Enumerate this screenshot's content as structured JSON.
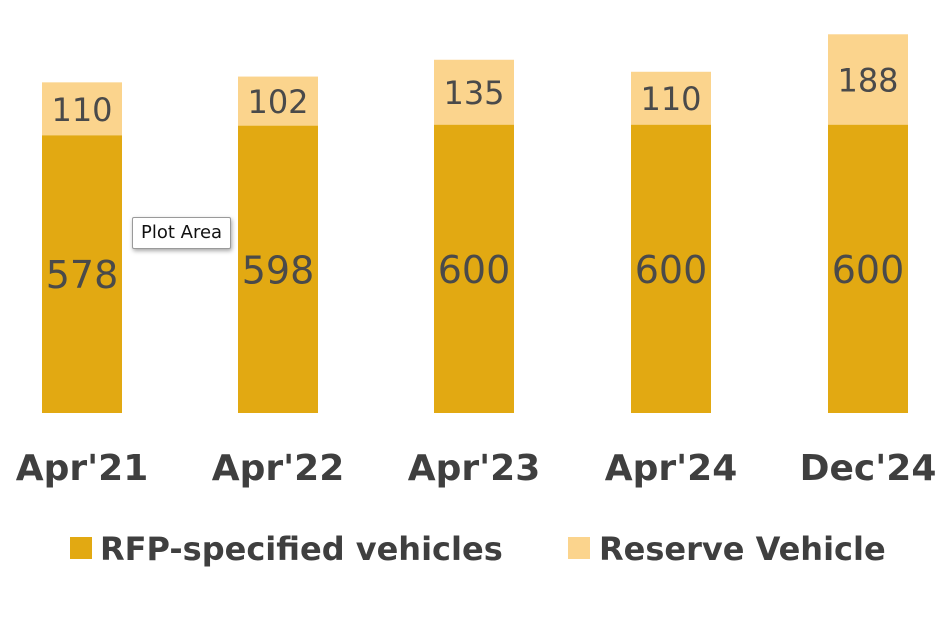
{
  "chart_data": {
    "type": "bar",
    "stacked": true,
    "categories": [
      "Apr'21",
      "Apr'22",
      "Apr'23",
      "Apr'24",
      "Dec'24"
    ],
    "series": [
      {
        "name": "RFP-specified vehicles",
        "values": [
          578,
          598,
          600,
          600,
          600
        ],
        "color": "#E2A912",
        "label_color": "#4a4a4a"
      },
      {
        "name": "Reserve Vehicle",
        "values": [
          110,
          102,
          135,
          110,
          188
        ],
        "color": "#FBD48D",
        "label_color": "#4a4a4a"
      }
    ],
    "title": "",
    "xlabel": "",
    "ylabel": "",
    "legend_position": "bottom",
    "grid": false
  },
  "tooltip": {
    "text": "Plot Area"
  }
}
